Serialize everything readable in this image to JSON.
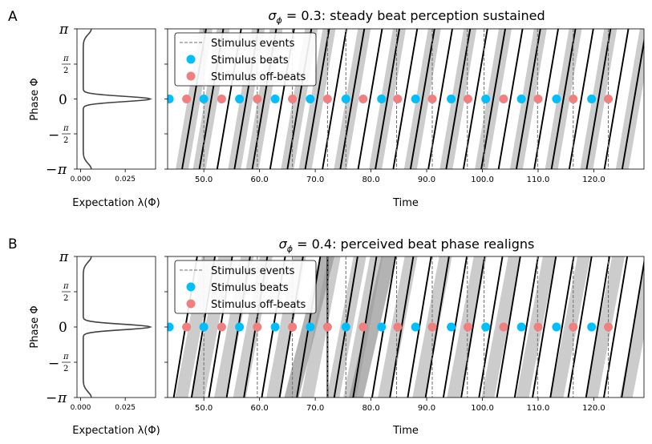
{
  "chart_data": [
    {
      "panel_label": "A",
      "type": "scatter",
      "title_pre": "σ",
      "title_sub": "ϕ",
      "title_post": " = 0.3: steady beat perception sustained",
      "xlabel": "Time",
      "ylabel": "Phase Φ",
      "xlim": [
        43.5,
        129
      ],
      "ylim": [
        -3.1416,
        3.1416
      ],
      "xticks": [
        "50.0",
        "60.0",
        "70.0",
        "80.0",
        "90.0",
        "100.0",
        "110.0",
        "120.0"
      ],
      "xtick_values": [
        50,
        60,
        70,
        80,
        90,
        100,
        110,
        120
      ],
      "yticks": [
        "−π",
        "−π/2",
        "0",
        "π/2",
        "π"
      ],
      "legend": {
        "position": "upper-left",
        "entries": [
          "Stimulus events",
          "Stimulus beats",
          "Stimulus off-beats"
        ]
      },
      "stimulus_events": [
        50.0,
        59.6,
        65.9,
        72.2,
        75.5,
        84.6,
        91.0,
        97.3,
        100.3,
        109.9,
        116.3,
        122.6
      ],
      "stimulus_beats": [
        43.8,
        50.0,
        56.4,
        62.8,
        69.1,
        75.5,
        81.9,
        88.0,
        94.4,
        100.6,
        107.0,
        113.3,
        119.6
      ],
      "stimulus_offbeats": [
        46.9,
        53.2,
        59.6,
        65.9,
        72.2,
        78.6,
        84.8,
        91.0,
        97.4,
        103.8,
        110.0,
        116.3,
        122.6
      ],
      "expectation_lines": [
        [
          46.1,
          -3.14,
          50.4,
          3.14
        ],
        [
          49.2,
          -3.14,
          53.5,
          3.14
        ],
        [
          52.4,
          -3.14,
          56.7,
          3.14
        ],
        [
          55.5,
          -3.14,
          59.8,
          3.14
        ],
        [
          58.7,
          -3.14,
          63.0,
          3.14
        ],
        [
          61.9,
          -3.14,
          66.2,
          3.14
        ],
        [
          65.0,
          -3.14,
          69.3,
          3.14
        ],
        [
          68.2,
          -3.14,
          72.5,
          3.14
        ],
        [
          71.3,
          -3.14,
          75.6,
          3.14
        ],
        [
          74.5,
          -3.14,
          78.8,
          3.14
        ],
        [
          77.7,
          -3.14,
          82.0,
          3.14
        ],
        [
          80.8,
          -3.14,
          85.1,
          3.14
        ],
        [
          84.0,
          -3.14,
          88.3,
          3.14
        ],
        [
          87.1,
          -3.14,
          91.4,
          3.14
        ],
        [
          90.3,
          -3.14,
          94.6,
          3.14
        ],
        [
          93.5,
          -3.14,
          97.8,
          3.14
        ],
        [
          96.6,
          -3.14,
          100.9,
          3.14
        ],
        [
          99.8,
          -3.14,
          104.1,
          3.14
        ],
        [
          102.9,
          -3.14,
          107.2,
          3.14
        ],
        [
          106.1,
          -3.14,
          110.4,
          3.14
        ],
        [
          109.3,
          -3.14,
          113.6,
          3.14
        ],
        [
          112.4,
          -3.14,
          116.7,
          3.14
        ],
        [
          115.6,
          -3.14,
          119.9,
          3.14
        ],
        [
          118.7,
          -3.14,
          123.0,
          3.14
        ],
        [
          121.9,
          -3.14,
          126.2,
          3.14
        ],
        [
          125.1,
          -3.14,
          129.4,
          3.14
        ]
      ],
      "bands": [
        [
          46.1,
          50.4
        ],
        [
          49.2,
          53.5
        ],
        [
          55.5,
          59.8
        ],
        [
          58.7,
          63.0
        ],
        [
          65.0,
          69.3
        ],
        [
          68.2,
          72.5
        ],
        [
          74.5,
          78.8
        ],
        [
          80.8,
          85.1
        ],
        [
          87.1,
          91.4
        ],
        [
          93.5,
          97.8
        ],
        [
          99.8,
          104.1
        ],
        [
          106.1,
          110.4
        ],
        [
          112.4,
          116.7
        ],
        [
          118.7,
          123.0
        ],
        [
          125.1,
          129.4
        ]
      ],
      "dark_bands": [],
      "expectation": {
        "xlabel": "Expectation λ(Φ)",
        "xticks": [
          "0.000",
          "0.025"
        ],
        "xtick_values": [
          0,
          0.025
        ],
        "xlim": [
          -0.002,
          0.042
        ],
        "base": 0.0015,
        "peak": 0.039,
        "width": 0.12,
        "edge": 0.0045
      }
    },
    {
      "panel_label": "B",
      "type": "scatter",
      "title_pre": "σ",
      "title_sub": "ϕ",
      "title_post": " = 0.4: perceived beat phase realigns",
      "xlabel": "Time",
      "ylabel": "Phase Φ",
      "xlim": [
        43.5,
        129
      ],
      "ylim": [
        -3.1416,
        3.1416
      ],
      "xticks": [
        "50.0",
        "60.0",
        "70.0",
        "80.0",
        "90.0",
        "100.0",
        "110.0",
        "120.0"
      ],
      "xtick_values": [
        50,
        60,
        70,
        80,
        90,
        100,
        110,
        120
      ],
      "yticks": [
        "−π",
        "−π/2",
        "0",
        "π/2",
        "π"
      ],
      "legend": {
        "position": "upper-left",
        "entries": [
          "Stimulus events",
          "Stimulus beats",
          "Stimulus off-beats"
        ]
      },
      "stimulus_events": [
        50.0,
        59.6,
        65.9,
        72.2,
        75.5,
        84.6,
        91.0,
        97.3,
        100.3,
        109.9,
        116.3,
        122.6
      ],
      "stimulus_beats": [
        43.8,
        50.0,
        56.4,
        62.8,
        69.1,
        75.5,
        81.9,
        88.0,
        94.4,
        100.6,
        107.0,
        113.3,
        119.6
      ],
      "stimulus_offbeats": [
        46.9,
        53.2,
        59.6,
        65.9,
        72.2,
        78.6,
        84.8,
        91.0,
        97.4,
        103.8,
        110.0,
        116.3,
        122.6
      ],
      "expectation_lines": [
        [
          44.6,
          -3.14,
          48.8,
          3.14
        ],
        [
          47.8,
          -3.14,
          52.0,
          3.14
        ],
        [
          50.9,
          -3.14,
          55.1,
          3.14
        ],
        [
          54.1,
          -3.14,
          58.3,
          3.14
        ],
        [
          57.2,
          -3.14,
          61.4,
          3.14
        ],
        [
          60.4,
          -3.14,
          64.6,
          3.14
        ],
        [
          63.6,
          -3.14,
          67.8,
          3.14
        ],
        [
          66.7,
          -3.14,
          70.9,
          3.14
        ],
        [
          72.2,
          -3.14,
          72.2,
          3.14
        ],
        [
          73.4,
          -3.14,
          77.6,
          3.14
        ],
        [
          76.8,
          -3.14,
          81.0,
          3.14
        ],
        [
          80.2,
          -3.14,
          84.4,
          3.14
        ],
        [
          83.4,
          -3.14,
          87.6,
          3.14
        ],
        [
          86.6,
          -3.14,
          90.8,
          3.14
        ],
        [
          89.8,
          -3.14,
          94.0,
          3.14
        ],
        [
          93.0,
          -3.14,
          97.2,
          3.14
        ],
        [
          96.2,
          -3.14,
          100.4,
          3.14
        ],
        [
          99.4,
          -3.14,
          103.6,
          3.14
        ],
        [
          102.6,
          -3.14,
          106.8,
          3.14
        ],
        [
          105.8,
          -3.14,
          110.0,
          3.14
        ],
        [
          109.0,
          -3.14,
          113.2,
          3.14
        ],
        [
          112.2,
          -3.14,
          116.4,
          3.14
        ],
        [
          115.4,
          -3.14,
          119.6,
          3.14
        ],
        [
          118.6,
          -3.14,
          122.8,
          3.14
        ],
        [
          121.8,
          -3.14,
          126.0,
          3.14
        ],
        [
          125.0,
          -3.14,
          129.2,
          3.14
        ]
      ],
      "bands": [
        [
          46.0,
          50.8
        ],
        [
          49.0,
          53.8
        ],
        [
          53.0,
          57.8
        ],
        [
          56.4,
          61.2
        ],
        [
          62.4,
          67.2
        ],
        [
          68.6,
          73.4
        ],
        [
          73.2,
          78.0
        ],
        [
          76.2,
          81.0
        ],
        [
          82.4,
          87.2
        ],
        [
          88.6,
          93.4
        ],
        [
          94.8,
          99.6
        ],
        [
          101.0,
          105.8
        ],
        [
          107.2,
          112.0
        ],
        [
          113.4,
          118.2
        ],
        [
          119.6,
          124.4
        ],
        [
          125.8,
          130.6
        ]
      ],
      "dark_bands": [
        [
          65.6,
          72.0
        ],
        [
          77.2,
          83.0
        ]
      ],
      "expectation": {
        "xlabel": "Expectation λ(Φ)",
        "xticks": [
          "0.000",
          "0.025"
        ],
        "xtick_values": [
          0,
          0.025
        ],
        "xlim": [
          -0.002,
          0.042
        ],
        "base": 0.0015,
        "peak": 0.039,
        "width": 0.12,
        "edge": 0.0045
      }
    }
  ]
}
